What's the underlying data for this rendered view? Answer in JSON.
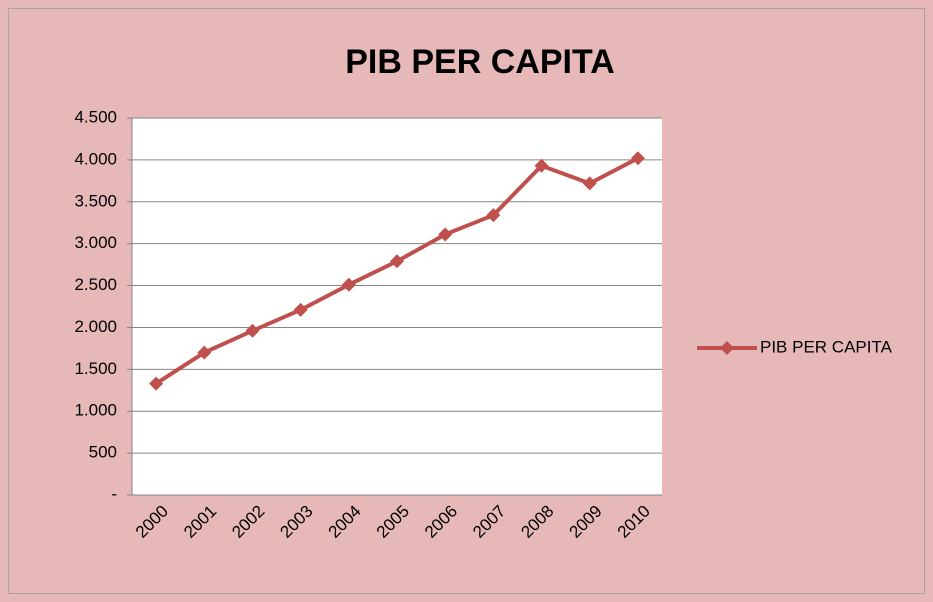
{
  "chart_data": {
    "type": "line",
    "title": "PIB PER CAPITA",
    "categories": [
      "2000",
      "2001",
      "2002",
      "2003",
      "2004",
      "2005",
      "2006",
      "2007",
      "2008",
      "2009",
      "2010"
    ],
    "series": [
      {
        "name": "PIB PER CAPITA",
        "color": "#c0504d",
        "values": [
          1330,
          1700,
          1960,
          2210,
          2510,
          2790,
          3110,
          3340,
          3930,
          3720,
          4020
        ]
      }
    ],
    "ylim": [
      0,
      4500
    ],
    "yticks": [
      {
        "value": 0,
        "label": "-"
      },
      500,
      {
        "value": 1000,
        "label": "1.000"
      },
      {
        "value": 1500,
        "label": "1.500"
      },
      {
        "value": 2000,
        "label": "2.000"
      },
      {
        "value": 2500,
        "label": "2.500"
      },
      {
        "value": 3000,
        "label": "3.000"
      },
      {
        "value": 3500,
        "label": "3.500"
      },
      {
        "value": 4000,
        "label": "4.000"
      },
      {
        "value": 4500,
        "label": "4.500"
      }
    ],
    "grid": true,
    "legend": "right"
  }
}
